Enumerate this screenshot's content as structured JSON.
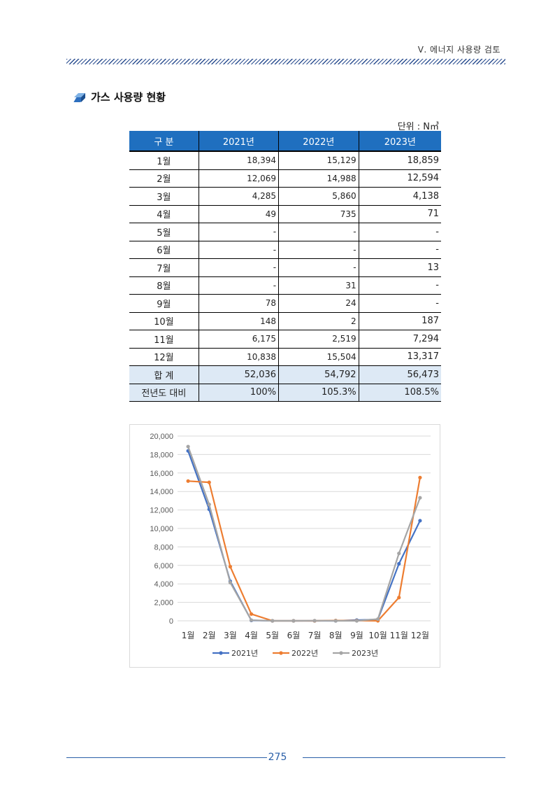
{
  "header": {
    "title": "Ⅴ. 에너지 사용량 검토"
  },
  "section": {
    "title": "가스 사용량 현황"
  },
  "unit_label": "단위 : N㎥",
  "table": {
    "columns": [
      "구 분",
      "2021년",
      "2022년",
      "2023년"
    ],
    "rows": [
      [
        "1월",
        "18,394",
        "15,129",
        "18,859"
      ],
      [
        "2월",
        "12,069",
        "14,988",
        "12,594"
      ],
      [
        "3월",
        "4,285",
        "5,860",
        "4,138"
      ],
      [
        "4월",
        "49",
        "735",
        "71"
      ],
      [
        "5월",
        "-",
        "-",
        "-"
      ],
      [
        "6월",
        "-",
        "-",
        "-"
      ],
      [
        "7월",
        "-",
        "-",
        "13"
      ],
      [
        "8월",
        "-",
        "31",
        "-"
      ],
      [
        "9월",
        "78",
        "24",
        "-"
      ],
      [
        "10월",
        "148",
        "2",
        "187"
      ],
      [
        "11월",
        "6,175",
        "2,519",
        "7,294"
      ],
      [
        "12월",
        "10,838",
        "15,504",
        "13,317"
      ]
    ],
    "total": [
      "합 계",
      "52,036",
      "54,792",
      "56,473"
    ],
    "yoy": [
      "전년도 대비",
      "100%",
      "105.3%",
      "108.5%"
    ]
  },
  "chart_data": {
    "type": "line",
    "categories": [
      "1월",
      "2월",
      "3월",
      "4월",
      "5월",
      "6월",
      "7월",
      "8월",
      "9월",
      "10월",
      "11월",
      "12월"
    ],
    "series": [
      {
        "name": "2021년",
        "color": "#4472c4",
        "values": [
          18394,
          12069,
          4285,
          49,
          0,
          0,
          0,
          0,
          78,
          148,
          6175,
          10838
        ]
      },
      {
        "name": "2022년",
        "color": "#ed7d31",
        "values": [
          15129,
          14988,
          5860,
          735,
          0,
          0,
          0,
          31,
          24,
          2,
          2519,
          15504
        ]
      },
      {
        "name": "2023년",
        "color": "#a5a5a5",
        "values": [
          18859,
          12594,
          4138,
          71,
          0,
          0,
          13,
          0,
          0,
          187,
          7294,
          13317
        ]
      }
    ],
    "ylim": [
      0,
      20000
    ],
    "yticks": [
      "0",
      "2,000",
      "4,000",
      "6,000",
      "8,000",
      "10,000",
      "12,000",
      "14,000",
      "16,000",
      "18,000",
      "20,000"
    ],
    "grid": true,
    "legend": "bottom"
  },
  "footer": {
    "page_number": "275"
  }
}
